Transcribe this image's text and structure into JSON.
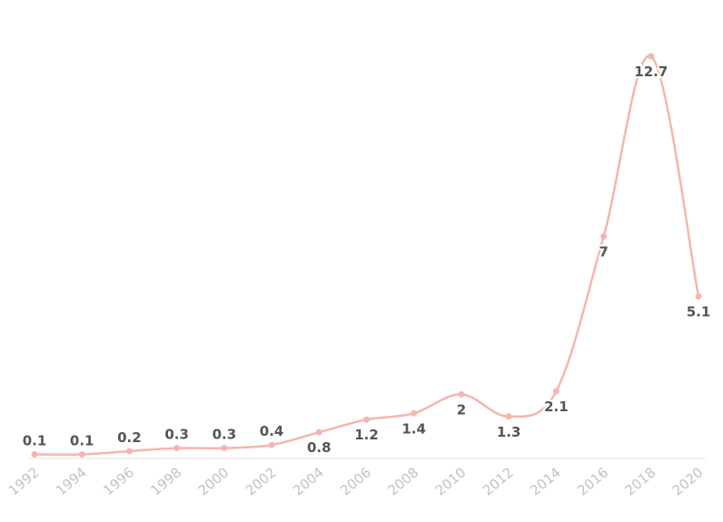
{
  "chart_data": {
    "type": "line",
    "title": "",
    "xlabel": "",
    "ylabel": "",
    "x": [
      "1992",
      "1994",
      "1996",
      "1998",
      "2000",
      "2002",
      "2004",
      "2006",
      "2008",
      "2010",
      "2012",
      "2014",
      "2016",
      "2018",
      "2020"
    ],
    "series": [
      {
        "values": [
          0.1,
          0.1,
          0.2,
          0.3,
          0.3,
          0.4,
          0.8,
          1.2,
          1.4,
          2,
          1.3,
          2.1,
          7,
          12.7,
          5.1
        ],
        "labels": [
          "0.1",
          "0.1",
          "0.2",
          "0.3",
          "0.3",
          "0.4",
          "0.8",
          "1.2",
          "1.4",
          "2",
          "1.3",
          "2.1",
          "7",
          "12.7",
          "5.1"
        ],
        "label_position": [
          "above",
          "above",
          "above",
          "above",
          "above",
          "above",
          "below",
          "below",
          "below",
          "below",
          "below",
          "below",
          "below",
          "below",
          "below"
        ],
        "color": "#f4b6ad"
      }
    ],
    "ylim": [
      0,
      12.7
    ],
    "grid": false,
    "legend": "none",
    "axis_color": "#e6e6e6",
    "tick_label_color": "#c2c2c2",
    "data_label_color": "#555555"
  }
}
